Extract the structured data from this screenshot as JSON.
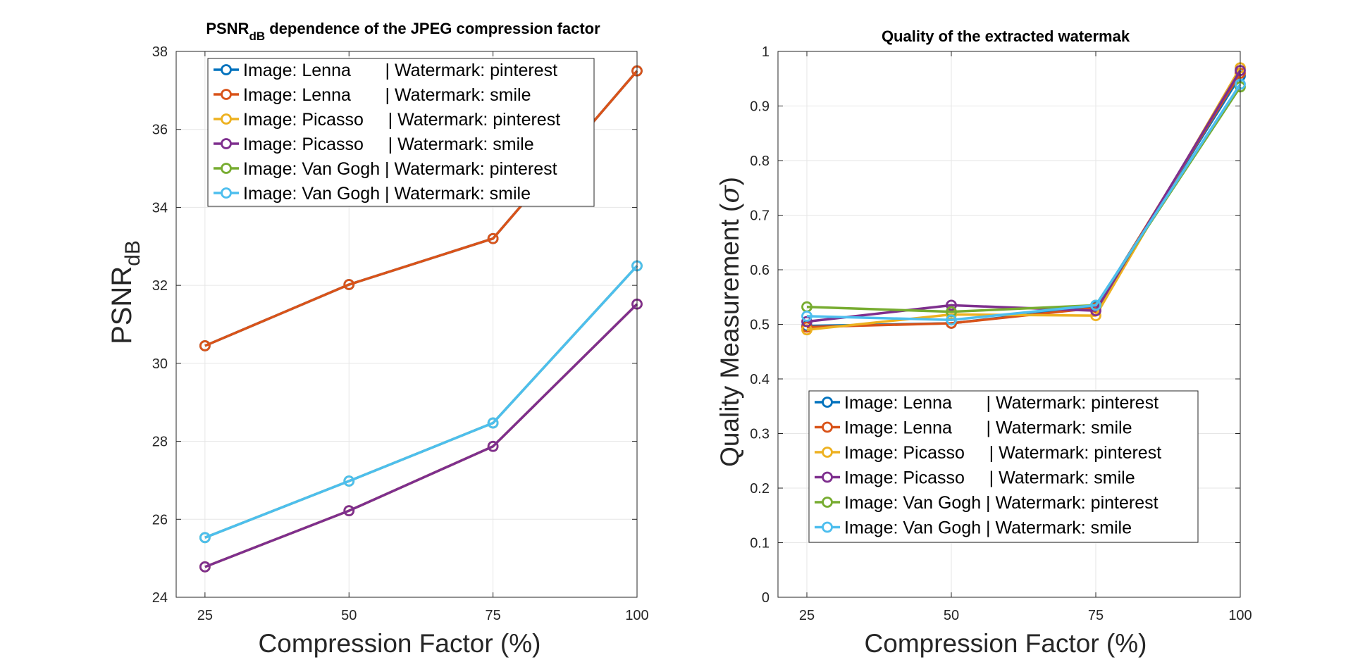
{
  "chart_data": [
    {
      "type": "line",
      "title_main": "PSNR",
      "title_sub": "dB",
      "title_rest": " dependence of the JPEG compression factor",
      "xlabel": "Compression Factor (%)",
      "ylabel_main": "PSNR",
      "ylabel_sub": "dB",
      "x": [
        25,
        50,
        75,
        100
      ],
      "xticks": [
        25,
        50,
        75,
        100
      ],
      "xlim": [
        20,
        100
      ],
      "ylim": [
        24,
        38
      ],
      "yticks": [
        24,
        26,
        28,
        30,
        32,
        34,
        36,
        38
      ],
      "grid": true,
      "legend_position": "top-right",
      "series": [
        {
          "name": "Image: Lenna       | Watermark: pinterest",
          "color": "#0072BD",
          "values": [
            30.45,
            32.02,
            33.2,
            37.5
          ]
        },
        {
          "name": "Image: Lenna       | Watermark: smile",
          "color": "#D95319",
          "values": [
            30.45,
            32.02,
            33.2,
            37.5
          ]
        },
        {
          "name": "Image: Picasso     | Watermark: pinterest",
          "color": "#EDB120",
          "values": [
            24.78,
            26.22,
            27.87,
            31.52
          ]
        },
        {
          "name": "Image: Picasso     | Watermark: smile",
          "color": "#7E2F8E",
          "values": [
            24.78,
            26.22,
            27.87,
            31.52
          ]
        },
        {
          "name": "Image: Van Gogh | Watermark: pinterest",
          "color": "#77AC30",
          "values": [
            25.53,
            26.98,
            28.47,
            32.5
          ]
        },
        {
          "name": "Image: Van Gogh | Watermark: smile",
          "color": "#4DBEEE",
          "values": [
            25.53,
            26.98,
            28.47,
            32.5
          ]
        }
      ]
    },
    {
      "type": "line",
      "title": "Quality of the extracted watermak",
      "xlabel": "Compression Factor (%)",
      "ylabel_main": "Quality Measurement (",
      "ylabel_symbol": "σ",
      "ylabel_end": ")",
      "x": [
        25,
        50,
        75,
        100
      ],
      "xticks": [
        25,
        50,
        75,
        100
      ],
      "xlim": [
        20,
        100
      ],
      "ylim": [
        0,
        1
      ],
      "yticks": [
        0,
        0.1,
        0.2,
        0.3,
        0.4,
        0.5,
        0.6,
        0.7,
        0.8,
        0.9,
        1
      ],
      "grid": true,
      "legend_position": "bottom-right",
      "series": [
        {
          "name": "Image: Lenna       | Watermark: pinterest",
          "color": "#0072BD",
          "values": [
            0.497,
            0.502,
            0.532,
            0.955
          ]
        },
        {
          "name": "Image: Lenna       | Watermark: smile",
          "color": "#D95319",
          "values": [
            0.495,
            0.502,
            0.53,
            0.96
          ]
        },
        {
          "name": "Image: Picasso     | Watermark: pinterest",
          "color": "#EDB120",
          "values": [
            0.49,
            0.518,
            0.516,
            0.97
          ]
        },
        {
          "name": "Image: Picasso     | Watermark: smile",
          "color": "#7E2F8E",
          "values": [
            0.505,
            0.535,
            0.525,
            0.965
          ]
        },
        {
          "name": "Image: Van Gogh | Watermark: pinterest",
          "color": "#77AC30",
          "values": [
            0.532,
            0.523,
            0.535,
            0.935
          ]
        },
        {
          "name": "Image: Van Gogh | Watermark: smile",
          "color": "#4DBEEE",
          "values": [
            0.515,
            0.508,
            0.535,
            0.94
          ]
        }
      ]
    }
  ]
}
